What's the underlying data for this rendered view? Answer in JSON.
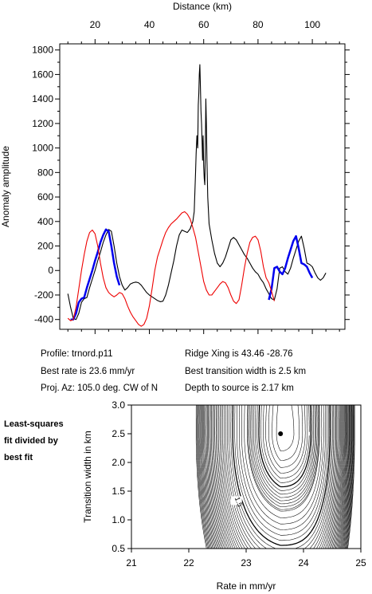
{
  "info": {
    "profile": "Profile: trnord.p11",
    "ridge_xing": "Ridge Xing is 43.46 -28.76",
    "best_rate": "Best rate is 23.6 mm/yr",
    "best_width": "Best transition width is 2.5 km",
    "proj_az": "Proj. Az: 105.0 deg. CW of N",
    "depth": "Depth to source is   2.17 km"
  },
  "side_note": [
    "Least-squares",
    "fit divided by",
    "best fit"
  ],
  "chart_data": [
    {
      "type": "line",
      "xlabel": "Distance (km)",
      "ylabel": "Anomaly amplitude",
      "xlim": [
        7,
        112
      ],
      "ylim": [
        -480,
        1850
      ],
      "xticks": [
        20,
        40,
        60,
        80,
        100
      ],
      "yticks": [
        -400,
        -200,
        0,
        200,
        400,
        600,
        800,
        1000,
        1200,
        1400,
        1600,
        1800
      ],
      "x_axis_position": "top",
      "series": [
        {
          "color": "#000000",
          "points": [
            [
              10,
              -190
            ],
            [
              11,
              -300
            ],
            [
              12,
              -390
            ],
            [
              13,
              -400
            ],
            [
              14,
              -350
            ],
            [
              15,
              -260
            ],
            [
              16,
              -230
            ],
            [
              17,
              -220
            ],
            [
              18,
              -140
            ],
            [
              19,
              -70
            ],
            [
              20,
              0
            ],
            [
              21,
              80
            ],
            [
              22,
              150
            ],
            [
              23,
              230
            ],
            [
              24,
              290
            ],
            [
              25,
              335
            ],
            [
              26,
              320
            ],
            [
              27,
              200
            ],
            [
              28,
              60
            ],
            [
              29,
              -50
            ],
            [
              30,
              -120
            ],
            [
              31,
              -160
            ],
            [
              32,
              -140
            ],
            [
              33,
              -110
            ],
            [
              34,
              -100
            ],
            [
              35,
              -95
            ],
            [
              36,
              -100
            ],
            [
              37,
              -120
            ],
            [
              38,
              -150
            ],
            [
              39,
              -180
            ],
            [
              40,
              -200
            ],
            [
              41,
              -215
            ],
            [
              42,
              -230
            ],
            [
              43,
              -245
            ],
            [
              44,
              -255
            ],
            [
              45,
              -250
            ],
            [
              46,
              -200
            ],
            [
              47,
              -120
            ],
            [
              48,
              -20
            ],
            [
              49,
              80
            ],
            [
              50,
              200
            ],
            [
              51,
              290
            ],
            [
              52,
              330
            ],
            [
              53,
              320
            ],
            [
              54,
              310
            ],
            [
              55,
              340
            ],
            [
              56,
              400
            ],
            [
              56.5,
              480
            ],
            [
              57,
              800
            ],
            [
              57.2,
              950
            ],
            [
              57.5,
              1100
            ],
            [
              57.8,
              1000
            ],
            [
              58,
              1350
            ],
            [
              58.2,
              1450
            ],
            [
              58.4,
              1600
            ],
            [
              58.6,
              1680
            ],
            [
              58.8,
              1500
            ],
            [
              59,
              1300
            ],
            [
              59.2,
              1200
            ],
            [
              59.4,
              1050
            ],
            [
              59.6,
              900
            ],
            [
              59.8,
              1100
            ],
            [
              60,
              850
            ],
            [
              60.2,
              750
            ],
            [
              60.4,
              700
            ],
            [
              60.6,
              1000
            ],
            [
              60.8,
              1400
            ],
            [
              61,
              1200
            ],
            [
              61.2,
              900
            ],
            [
              61.5,
              600
            ],
            [
              62,
              380
            ],
            [
              63,
              250
            ],
            [
              64,
              140
            ],
            [
              65,
              60
            ],
            [
              66,
              30
            ],
            [
              67,
              60
            ],
            [
              68,
              110
            ],
            [
              69,
              180
            ],
            [
              70,
              250
            ],
            [
              71,
              270
            ],
            [
              72,
              250
            ],
            [
              73,
              210
            ],
            [
              74,
              170
            ],
            [
              75,
              130
            ],
            [
              76,
              100
            ],
            [
              77,
              60
            ],
            [
              78,
              20
            ],
            [
              79,
              -10
            ],
            [
              80,
              -30
            ],
            [
              81,
              -70
            ],
            [
              82,
              -100
            ],
            [
              83,
              -150
            ],
            [
              84,
              -190
            ],
            [
              85,
              -230
            ],
            [
              86,
              -240
            ],
            [
              87,
              -150
            ],
            [
              88,
              20
            ],
            [
              89,
              30
            ],
            [
              90,
              -10
            ],
            [
              91,
              -30
            ],
            [
              92,
              20
            ],
            [
              93,
              100
            ],
            [
              94,
              170
            ],
            [
              95,
              240
            ],
            [
              96,
              280
            ],
            [
              97,
              180
            ],
            [
              98,
              60
            ],
            [
              99,
              50
            ],
            [
              100,
              30
            ],
            [
              101,
              -20
            ],
            [
              102,
              -60
            ],
            [
              103,
              -80
            ],
            [
              104,
              -60
            ],
            [
              105,
              -20
            ]
          ]
        },
        {
          "color": "#0000ee",
          "points": [
            [
              11,
              -400
            ],
            [
              12,
              -400
            ],
            [
              13,
              -350
            ],
            [
              14,
              -260
            ],
            [
              15,
              -230
            ],
            [
              16,
              -220
            ],
            [
              17,
              -140
            ],
            [
              18,
              -70
            ],
            [
              19,
              0
            ],
            [
              20,
              80
            ],
            [
              21,
              150
            ],
            [
              22,
              230
            ],
            [
              23,
              290
            ],
            [
              24,
              335
            ],
            [
              25,
              320
            ],
            [
              26,
              200
            ],
            [
              27,
              60
            ],
            [
              28,
              -50
            ],
            [
              29,
              -120
            ]
          ]
        },
        {
          "color": "#0000ee",
          "points": [
            [
              84,
              -240
            ],
            [
              85,
              -150
            ],
            [
              86,
              20
            ],
            [
              87,
              30
            ],
            [
              88,
              -10
            ],
            [
              89,
              -30
            ],
            [
              90,
              20
            ],
            [
              91,
              100
            ],
            [
              92,
              170
            ],
            [
              93,
              240
            ],
            [
              94,
              280
            ],
            [
              95,
              180
            ],
            [
              96,
              60
            ],
            [
              97,
              50
            ],
            [
              98,
              30
            ],
            [
              99,
              -20
            ],
            [
              100,
              -60
            ]
          ]
        },
        {
          "color": "#ee0000",
          "points": [
            [
              10,
              -390
            ],
            [
              11,
              -410
            ],
            [
              12,
              -400
            ],
            [
              13,
              -300
            ],
            [
              14,
              -150
            ],
            [
              15,
              0
            ],
            [
              16,
              130
            ],
            [
              17,
              240
            ],
            [
              18,
              310
            ],
            [
              19,
              330
            ],
            [
              20,
              300
            ],
            [
              21,
              200
            ],
            [
              22,
              60
            ],
            [
              23,
              -60
            ],
            [
              24,
              -140
            ],
            [
              25,
              -180
            ],
            [
              26,
              -200
            ],
            [
              27,
              -215
            ],
            [
              28,
              -200
            ],
            [
              29,
              -180
            ],
            [
              30,
              -190
            ],
            [
              31,
              -230
            ],
            [
              32,
              -290
            ],
            [
              33,
              -340
            ],
            [
              34,
              -380
            ],
            [
              35,
              -410
            ],
            [
              36,
              -440
            ],
            [
              37,
              -455
            ],
            [
              38,
              -440
            ],
            [
              39,
              -390
            ],
            [
              40,
              -290
            ],
            [
              41,
              -150
            ],
            [
              42,
              0
            ],
            [
              43,
              110
            ],
            [
              44,
              180
            ],
            [
              45,
              250
            ],
            [
              46,
              310
            ],
            [
              47,
              350
            ],
            [
              48,
              380
            ],
            [
              49,
              400
            ],
            [
              50,
              420
            ],
            [
              51,
              445
            ],
            [
              52,
              470
            ],
            [
              53,
              480
            ],
            [
              54,
              460
            ],
            [
              55,
              420
            ],
            [
              56,
              350
            ],
            [
              57,
              270
            ],
            [
              58,
              150
            ],
            [
              59,
              30
            ],
            [
              60,
              -90
            ],
            [
              61,
              -160
            ],
            [
              62,
              -200
            ],
            [
              63,
              -200
            ],
            [
              64,
              -170
            ],
            [
              65,
              -140
            ],
            [
              66,
              -110
            ],
            [
              67,
              -90
            ],
            [
              68,
              -100
            ],
            [
              69,
              -140
            ],
            [
              70,
              -200
            ],
            [
              71,
              -250
            ],
            [
              72,
              -270
            ],
            [
              73,
              -240
            ],
            [
              74,
              -120
            ],
            [
              75,
              20
            ],
            [
              76,
              140
            ],
            [
              77,
              230
            ],
            [
              78,
              270
            ],
            [
              79,
              280
            ],
            [
              80,
              250
            ],
            [
              81,
              160
            ],
            [
              82,
              30
            ],
            [
              83,
              -60
            ],
            [
              84,
              -100
            ],
            [
              85,
              -170
            ],
            [
              86,
              -250
            ]
          ]
        }
      ]
    },
    {
      "type": "contour",
      "xlabel": "Rate in mm/yr",
      "ylabel": "Transition width in km",
      "xlim": [
        21,
        25
      ],
      "ylim": [
        0.5,
        3.0
      ],
      "xticks": [
        21,
        22,
        23,
        24,
        25
      ],
      "yticks": [
        0.5,
        1.0,
        1.5,
        2.0,
        2.5,
        3.0
      ],
      "best_fit": {
        "rate": 23.6,
        "width": 2.5
      },
      "contour_labels": [
        {
          "text": "1.5",
          "rate": 22.83,
          "width": 1.3
        }
      ]
    }
  ]
}
